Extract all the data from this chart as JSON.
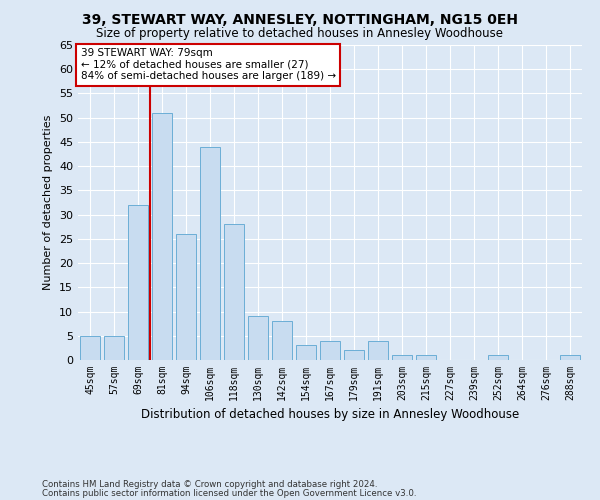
{
  "title": "39, STEWART WAY, ANNESLEY, NOTTINGHAM, NG15 0EH",
  "subtitle": "Size of property relative to detached houses in Annesley Woodhouse",
  "xlabel": "Distribution of detached houses by size in Annesley Woodhouse",
  "ylabel": "Number of detached properties",
  "footer1": "Contains HM Land Registry data © Crown copyright and database right 2024.",
  "footer2": "Contains public sector information licensed under the Open Government Licence v3.0.",
  "categories": [
    "45sqm",
    "57sqm",
    "69sqm",
    "81sqm",
    "94sqm",
    "106sqm",
    "118sqm",
    "130sqm",
    "142sqm",
    "154sqm",
    "167sqm",
    "179sqm",
    "191sqm",
    "203sqm",
    "215sqm",
    "227sqm",
    "239sqm",
    "252sqm",
    "264sqm",
    "276sqm",
    "288sqm"
  ],
  "values": [
    5,
    5,
    32,
    51,
    26,
    44,
    28,
    9,
    8,
    3,
    4,
    2,
    4,
    1,
    1,
    0,
    0,
    1,
    0,
    0,
    1
  ],
  "bar_color": "#c8dcf0",
  "bar_edge_color": "#6baed6",
  "bg_color": "#dce8f5",
  "grid_color": "#ffffff",
  "annotation_text": "39 STEWART WAY: 79sqm\n← 12% of detached houses are smaller (27)\n84% of semi-detached houses are larger (189) →",
  "annotation_box_color": "#ffffff",
  "annotation_box_edge_color": "#cc0000",
  "ylim": [
    0,
    65
  ],
  "yticks": [
    0,
    5,
    10,
    15,
    20,
    25,
    30,
    35,
    40,
    45,
    50,
    55,
    60,
    65
  ],
  "property_line_color": "#cc0000",
  "title_fontsize": 10,
  "subtitle_fontsize": 8.5
}
